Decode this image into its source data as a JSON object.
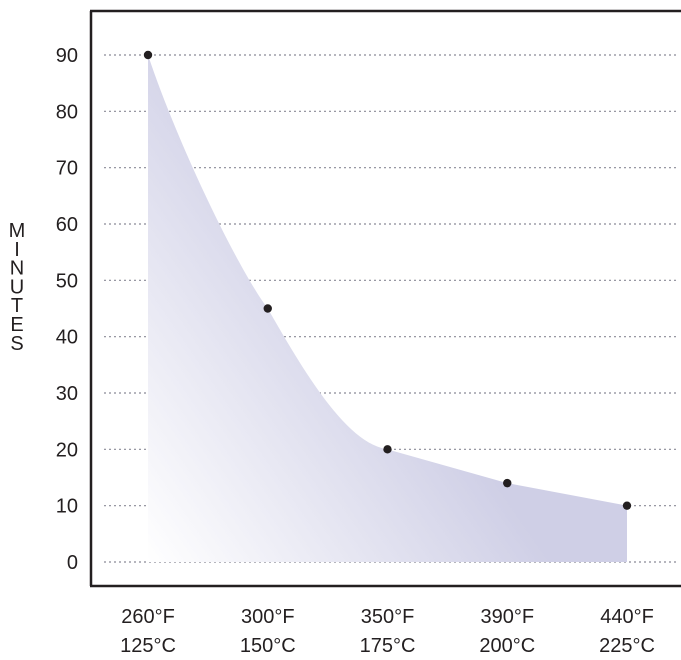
{
  "chart_data": {
    "type": "area",
    "title": "",
    "xlabel": "",
    "ylabel": "MINUTES",
    "x_categories": [
      {
        "f": "260°F",
        "c": "125°C"
      },
      {
        "f": "300°F",
        "c": "150°C"
      },
      {
        "f": "350°F",
        "c": "175°C"
      },
      {
        "f": "390°F",
        "c": "200°C"
      },
      {
        "f": "440°F",
        "c": "225°C"
      }
    ],
    "values": [
      90,
      45,
      20,
      14,
      10
    ],
    "ylim": [
      0,
      90
    ],
    "yticks": [
      0,
      10,
      20,
      30,
      40,
      50,
      60,
      70,
      80,
      90
    ],
    "grid": "horizontal dotted",
    "markers": true,
    "colors": {
      "fill": "#cfcfe6",
      "fill_fade": "#ffffff",
      "marker": "#231f20",
      "grid": "#8a8a96",
      "axis": "#231f20"
    }
  }
}
